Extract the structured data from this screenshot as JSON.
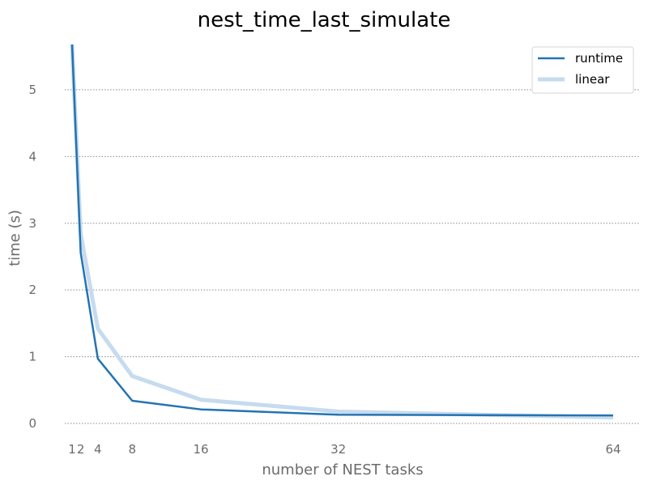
{
  "chart_data": {
    "type": "line",
    "title": "nest_time_last_simulate",
    "xlabel": "number of NEST tasks",
    "ylabel": "time (s)",
    "x": [
      1,
      2,
      4,
      8,
      16,
      32,
      64
    ],
    "xticks": [
      1,
      2,
      4,
      8,
      16,
      32,
      64
    ],
    "yticks": [
      0,
      1,
      2,
      3,
      4,
      5
    ],
    "xlim": [
      1,
      64
    ],
    "ylim": [
      0,
      5.8
    ],
    "grid": "y-dotted",
    "legend_position": "top-right",
    "series": [
      {
        "name": "runtime",
        "values": [
          5.68,
          2.56,
          0.97,
          0.34,
          0.21,
          0.13,
          0.12
        ],
        "color": "#2473b3"
      },
      {
        "name": "linear",
        "values": [
          5.68,
          2.84,
          1.42,
          0.71,
          0.355,
          0.1775,
          0.0888
        ],
        "color": "#c6dbee"
      }
    ]
  }
}
